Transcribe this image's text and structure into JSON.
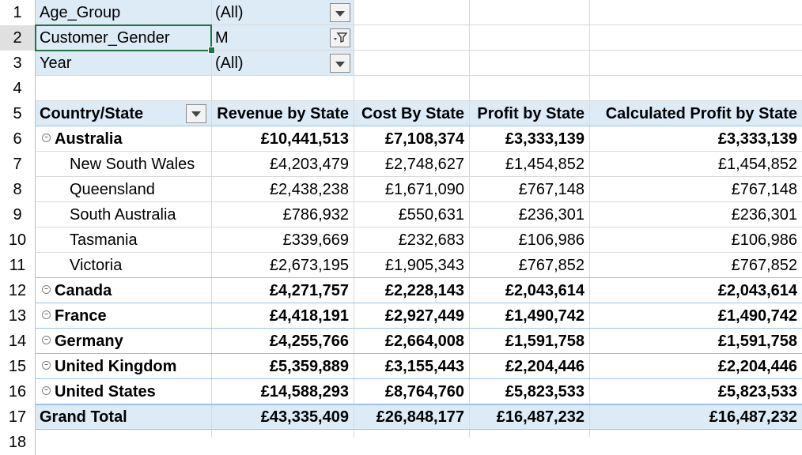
{
  "row_numbers": [
    "1",
    "2",
    "3",
    "4",
    "5",
    "6",
    "7",
    "8",
    "9",
    "10",
    "11",
    "12",
    "13",
    "14",
    "15",
    "16",
    "17",
    "18"
  ],
  "filters": [
    {
      "field": "Age_Group",
      "value": "(All)",
      "filtered": false
    },
    {
      "field": "Customer_Gender",
      "value": "M",
      "filtered": true
    },
    {
      "field": "Year",
      "value": "(All)",
      "filtered": false
    }
  ],
  "pivot": {
    "headers": [
      "Country/State",
      "Revenue by State",
      "Cost By State",
      "Profit by State",
      "Calculated Profit by State"
    ],
    "rows": [
      {
        "label": "Australia",
        "level": 0,
        "collapsible": true,
        "values": [
          "£10,441,513",
          "£7,108,374",
          "£3,333,139",
          "£3,333,139"
        ]
      },
      {
        "label": "New South Wales",
        "level": 1,
        "collapsible": false,
        "values": [
          "£4,203,479",
          "£2,748,627",
          "£1,454,852",
          "£1,454,852"
        ]
      },
      {
        "label": "Queensland",
        "level": 1,
        "collapsible": false,
        "values": [
          "£2,438,238",
          "£1,671,090",
          "£767,148",
          "£767,148"
        ]
      },
      {
        "label": "South Australia",
        "level": 1,
        "collapsible": false,
        "values": [
          "£786,932",
          "£550,631",
          "£236,301",
          "£236,301"
        ]
      },
      {
        "label": "Tasmania",
        "level": 1,
        "collapsible": false,
        "values": [
          "£339,669",
          "£232,683",
          "£106,986",
          "£106,986"
        ]
      },
      {
        "label": "Victoria",
        "level": 1,
        "collapsible": false,
        "values": [
          "£2,673,195",
          "£1,905,343",
          "£767,852",
          "£767,852"
        ]
      },
      {
        "label": "Canada",
        "level": 0,
        "collapsible": true,
        "values": [
          "£4,271,757",
          "£2,228,143",
          "£2,043,614",
          "£2,043,614"
        ]
      },
      {
        "label": "France",
        "level": 0,
        "collapsible": true,
        "values": [
          "£4,418,191",
          "£2,927,449",
          "£1,490,742",
          "£1,490,742"
        ]
      },
      {
        "label": "Germany",
        "level": 0,
        "collapsible": true,
        "values": [
          "£4,255,766",
          "£2,664,008",
          "£1,591,758",
          "£1,591,758"
        ]
      },
      {
        "label": "United Kingdom",
        "level": 0,
        "collapsible": true,
        "values": [
          "£5,359,889",
          "£3,155,443",
          "£2,204,446",
          "£2,204,446"
        ]
      },
      {
        "label": "United States",
        "level": 0,
        "collapsible": true,
        "values": [
          "£14,588,293",
          "£8,764,760",
          "£5,823,533",
          "£5,823,533"
        ]
      }
    ],
    "grand_total": {
      "label": "Grand Total",
      "values": [
        "£43,335,409",
        "£26,848,177",
        "£16,487,232",
        "£16,487,232"
      ]
    }
  },
  "icons": {
    "dropdown": "dropdown-arrow-icon",
    "filter": "filter-icon",
    "expander": "collapse-toggle-icon"
  },
  "colors": {
    "pivot_header_bg": "#ddebf7",
    "selection": "#217346",
    "pivot_border": "#9bc2e6"
  }
}
